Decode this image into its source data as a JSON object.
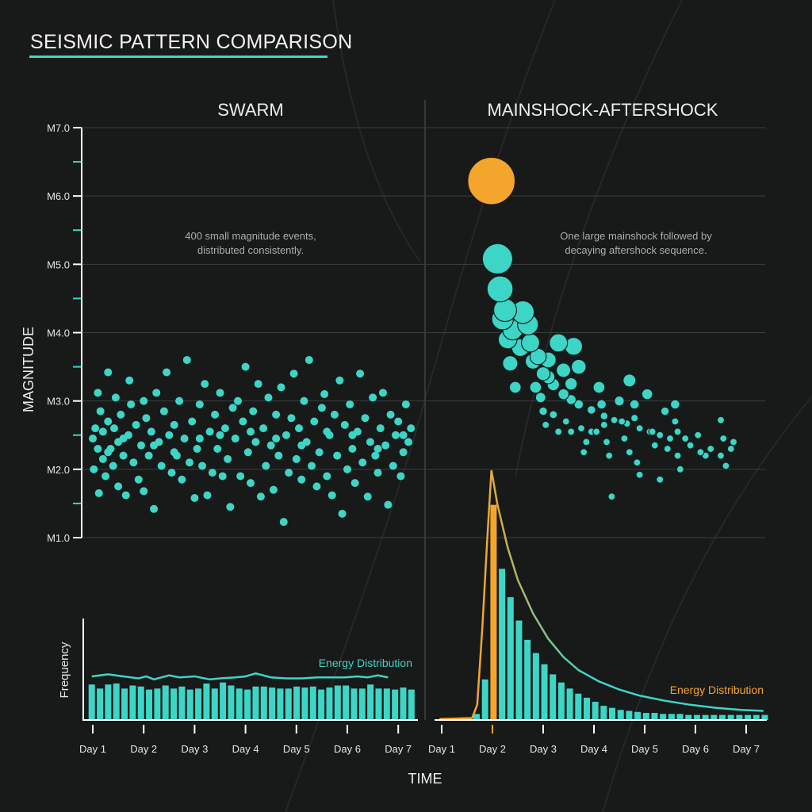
{
  "title": "SEISMIC PATTERN COMPARISON",
  "colors": {
    "background": "#181919",
    "teal": "#3dd6c6",
    "orange": "#f4a52c",
    "grid": "#3a3f3f",
    "axis": "#ffffff"
  },
  "chart_data": [
    {
      "type": "scatter",
      "title": "SWARM",
      "annotation": [
        "400 small magnitude events,",
        "distributed consistently."
      ],
      "ylabel": "MAGNITUDE",
      "xlabel": "TIME",
      "yticks": [
        "M7.0",
        "M6.0",
        "M5.0",
        "M4.0",
        "M3.0",
        "M2.0",
        "M1.0"
      ],
      "ylim": [
        1.0,
        7.0
      ],
      "xticks": [
        "Day 1",
        "Day 2",
        "Day 3",
        "Day 4",
        "Day 5",
        "Day 6",
        "Day 7"
      ],
      "grid": true,
      "points": [
        [
          1.0,
          2.45
        ],
        [
          1.02,
          2.0
        ],
        [
          1.05,
          2.6
        ],
        [
          1.1,
          2.3
        ],
        [
          1.1,
          3.12
        ],
        [
          1.12,
          1.65
        ],
        [
          1.15,
          2.85
        ],
        [
          1.2,
          2.15
        ],
        [
          1.2,
          2.55
        ],
        [
          1.25,
          1.9
        ],
        [
          1.3,
          3.42
        ],
        [
          1.3,
          2.7
        ],
        [
          1.35,
          2.3
        ],
        [
          1.4,
          2.05
        ],
        [
          1.42,
          2.6
        ],
        [
          1.45,
          3.05
        ],
        [
          1.5,
          1.75
        ],
        [
          1.5,
          2.4
        ],
        [
          1.55,
          2.8
        ],
        [
          1.6,
          2.2
        ],
        [
          1.65,
          1.62
        ],
        [
          1.7,
          2.5
        ],
        [
          1.72,
          3.3
        ],
        [
          1.75,
          2.95
        ],
        [
          1.8,
          2.1
        ],
        [
          1.85,
          2.65
        ],
        [
          1.9,
          1.85
        ],
        [
          1.95,
          2.35
        ],
        [
          2.0,
          3.0
        ],
        [
          2.0,
          1.68
        ],
        [
          2.05,
          2.75
        ],
        [
          2.1,
          2.2
        ],
        [
          2.15,
          2.55
        ],
        [
          2.2,
          1.42
        ],
        [
          2.25,
          3.12
        ],
        [
          2.3,
          2.4
        ],
        [
          2.35,
          2.05
        ],
        [
          2.4,
          2.85
        ],
        [
          2.45,
          3.42
        ],
        [
          2.5,
          2.5
        ],
        [
          2.55,
          1.95
        ],
        [
          2.6,
          2.65
        ],
        [
          2.65,
          2.2
        ],
        [
          2.7,
          3.0
        ],
        [
          2.75,
          1.85
        ],
        [
          2.8,
          2.45
        ],
        [
          2.85,
          3.6
        ],
        [
          2.9,
          2.1
        ],
        [
          2.95,
          2.7
        ],
        [
          3.0,
          1.58
        ],
        [
          3.05,
          2.3
        ],
        [
          3.1,
          2.95
        ],
        [
          3.15,
          2.05
        ],
        [
          3.2,
          3.25
        ],
        [
          3.25,
          1.62
        ],
        [
          3.3,
          2.55
        ],
        [
          3.35,
          1.95
        ],
        [
          3.4,
          2.8
        ],
        [
          3.45,
          2.3
        ],
        [
          3.5,
          3.12
        ],
        [
          3.55,
          1.9
        ],
        [
          3.6,
          2.6
        ],
        [
          3.65,
          2.15
        ],
        [
          3.7,
          1.45
        ],
        [
          3.75,
          2.9
        ],
        [
          3.8,
          2.45
        ],
        [
          3.85,
          3.0
        ],
        [
          3.9,
          1.9
        ],
        [
          3.95,
          2.7
        ],
        [
          4.0,
          3.5
        ],
        [
          4.05,
          2.25
        ],
        [
          4.1,
          1.8
        ],
        [
          4.15,
          2.85
        ],
        [
          4.2,
          2.4
        ],
        [
          4.25,
          3.25
        ],
        [
          4.3,
          1.6
        ],
        [
          4.35,
          2.6
        ],
        [
          4.4,
          2.05
        ],
        [
          4.45,
          3.05
        ],
        [
          4.5,
          2.35
        ],
        [
          4.55,
          1.7
        ],
        [
          4.6,
          2.8
        ],
        [
          4.65,
          2.2
        ],
        [
          4.7,
          3.2
        ],
        [
          4.75,
          1.23
        ],
        [
          4.8,
          2.5
        ],
        [
          4.85,
          1.95
        ],
        [
          4.9,
          2.75
        ],
        [
          4.95,
          3.4
        ],
        [
          5.0,
          2.15
        ],
        [
          5.05,
          2.6
        ],
        [
          5.1,
          1.85
        ],
        [
          5.15,
          3.0
        ],
        [
          5.2,
          2.4
        ],
        [
          5.25,
          3.6
        ],
        [
          5.3,
          2.05
        ],
        [
          5.35,
          2.7
        ],
        [
          5.4,
          1.75
        ],
        [
          5.45,
          2.25
        ],
        [
          5.5,
          2.9
        ],
        [
          5.55,
          3.1
        ],
        [
          5.6,
          1.9
        ],
        [
          5.65,
          2.5
        ],
        [
          5.7,
          1.62
        ],
        [
          5.75,
          2.8
        ],
        [
          5.8,
          2.2
        ],
        [
          5.85,
          3.3
        ],
        [
          5.9,
          1.35
        ],
        [
          5.95,
          2.65
        ],
        [
          6.0,
          2.0
        ],
        [
          6.05,
          2.95
        ],
        [
          6.1,
          2.3
        ],
        [
          6.15,
          1.8
        ],
        [
          6.2,
          2.55
        ],
        [
          6.25,
          3.4
        ],
        [
          6.3,
          2.1
        ],
        [
          6.35,
          2.75
        ],
        [
          6.4,
          1.6
        ],
        [
          6.45,
          2.4
        ],
        [
          6.5,
          3.05
        ],
        [
          6.55,
          2.2
        ],
        [
          6.6,
          1.95
        ],
        [
          6.65,
          2.6
        ],
        [
          6.7,
          3.12
        ],
        [
          6.75,
          2.35
        ],
        [
          6.8,
          1.48
        ],
        [
          6.85,
          2.8
        ],
        [
          6.9,
          2.05
        ],
        [
          6.95,
          2.5
        ],
        [
          7.0,
          2.7
        ],
        [
          7.05,
          1.9
        ],
        [
          7.1,
          2.25
        ],
        [
          7.15,
          2.95
        ],
        [
          7.2,
          2.4
        ],
        [
          7.25,
          2.6
        ],
        [
          1.3,
          2.25
        ],
        [
          1.6,
          2.45
        ],
        [
          2.2,
          2.35
        ],
        [
          2.6,
          2.25
        ],
        [
          3.1,
          2.45
        ],
        [
          3.5,
          2.5
        ],
        [
          4.1,
          2.55
        ],
        [
          4.6,
          2.45
        ],
        [
          5.1,
          2.35
        ],
        [
          5.6,
          2.55
        ],
        [
          6.1,
          2.5
        ],
        [
          6.6,
          2.3
        ],
        [
          7.1,
          2.5
        ]
      ]
    },
    {
      "type": "scatter",
      "title": "MAINSHOCK-AFTERSHOCK",
      "annotation": [
        "One large mainshock followed by",
        "decaying aftershock sequence."
      ],
      "ylim": [
        1.0,
        7.0
      ],
      "xticks": [
        "Day 1",
        "Day 2",
        "Day 3",
        "Day 4",
        "Day 5",
        "Day 6",
        "Day 7"
      ],
      "mainshock": [
        1.98,
        6.22
      ],
      "points": [
        [
          2.1,
          5.08
        ],
        [
          2.15,
          4.64
        ],
        [
          2.25,
          4.33
        ],
        [
          2.4,
          4.04
        ],
        [
          2.55,
          3.78
        ],
        [
          2.8,
          3.58
        ],
        [
          3.0,
          3.4
        ],
        [
          3.2,
          3.24
        ],
        [
          3.4,
          3.1
        ],
        [
          3.55,
          3.02
        ],
        [
          3.7,
          2.95
        ],
        [
          3.95,
          2.87
        ],
        [
          4.2,
          2.78
        ],
        [
          4.4,
          2.72
        ],
        [
          4.65,
          2.67
        ],
        [
          4.9,
          2.6
        ],
        [
          5.1,
          2.55
        ],
        [
          5.3,
          2.5
        ],
        [
          5.5,
          2.45
        ],
        [
          2.2,
          4.2
        ],
        [
          2.3,
          3.9
        ],
        [
          2.35,
          3.55
        ],
        [
          2.45,
          3.2
        ],
        [
          2.6,
          4.3
        ],
        [
          2.7,
          4.12
        ],
        [
          2.75,
          3.85
        ],
        [
          2.85,
          3.2
        ],
        [
          2.9,
          3.65
        ],
        [
          2.95,
          3.05
        ],
        [
          3.0,
          2.85
        ],
        [
          3.05,
          2.65
        ],
        [
          3.1,
          3.6
        ],
        [
          3.1,
          3.35
        ],
        [
          3.2,
          2.8
        ],
        [
          3.3,
          3.85
        ],
        [
          3.3,
          2.55
        ],
        [
          3.4,
          3.45
        ],
        [
          3.45,
          2.7
        ],
        [
          3.55,
          3.25
        ],
        [
          3.55,
          2.55
        ],
        [
          3.6,
          3.8
        ],
        [
          3.7,
          3.5
        ],
        [
          3.75,
          2.6
        ],
        [
          3.8,
          2.25
        ],
        [
          3.85,
          2.4
        ],
        [
          3.95,
          2.55
        ],
        [
          4.05,
          2.55
        ],
        [
          4.1,
          3.2
        ],
        [
          4.15,
          2.95
        ],
        [
          4.2,
          2.65
        ],
        [
          4.25,
          2.4
        ],
        [
          4.3,
          2.2
        ],
        [
          4.35,
          1.6
        ],
        [
          4.5,
          3.0
        ],
        [
          4.55,
          2.7
        ],
        [
          4.6,
          2.45
        ],
        [
          4.7,
          3.3
        ],
        [
          4.7,
          2.25
        ],
        [
          4.8,
          2.95
        ],
        [
          4.8,
          2.75
        ],
        [
          4.85,
          2.1
        ],
        [
          4.9,
          1.92
        ],
        [
          5.05,
          3.1
        ],
        [
          5.15,
          2.55
        ],
        [
          5.2,
          2.35
        ],
        [
          5.3,
          1.85
        ],
        [
          5.4,
          2.85
        ],
        [
          5.45,
          2.3
        ],
        [
          5.6,
          2.95
        ],
        [
          5.6,
          2.7
        ],
        [
          5.65,
          2.55
        ],
        [
          5.65,
          2.2
        ],
        [
          5.7,
          2.0
        ],
        [
          5.8,
          2.45
        ],
        [
          5.9,
          2.35
        ],
        [
          6.05,
          2.5
        ],
        [
          6.1,
          2.25
        ],
        [
          6.2,
          2.2
        ],
        [
          6.3,
          2.3
        ],
        [
          6.5,
          2.72
        ],
        [
          6.5,
          2.2
        ],
        [
          6.55,
          2.45
        ],
        [
          6.6,
          2.05
        ],
        [
          6.7,
          2.3
        ],
        [
          6.75,
          2.4
        ]
      ]
    },
    {
      "type": "bar",
      "ylabel": "Frequency",
      "legend": "Energy Distribution",
      "bin_width_days": 0.161,
      "first_bin_day": 0.98,
      "values": [
        35,
        31,
        35,
        36,
        31,
        34,
        33,
        30,
        31,
        34,
        31,
        33,
        30,
        31,
        36,
        31,
        37,
        34,
        31,
        30,
        33,
        33,
        32,
        31,
        31,
        33,
        32,
        33,
        30,
        32,
        34,
        34,
        31,
        31,
        35,
        31,
        31,
        30,
        32,
        30
      ],
      "energy_line": [
        [
          0.98,
          43
        ],
        [
          1.3,
          45
        ],
        [
          1.6,
          43
        ],
        [
          1.9,
          41
        ],
        [
          2.05,
          43
        ],
        [
          2.2,
          40
        ],
        [
          2.5,
          44
        ],
        [
          2.7,
          42
        ],
        [
          3.0,
          43
        ],
        [
          3.3,
          40
        ],
        [
          3.5,
          41
        ],
        [
          3.8,
          42
        ],
        [
          4.0,
          43
        ],
        [
          4.2,
          46
        ],
        [
          4.5,
          42
        ],
        [
          4.8,
          41
        ],
        [
          5.1,
          41
        ],
        [
          5.4,
          42
        ],
        [
          5.7,
          42
        ],
        [
          5.95,
          42
        ],
        [
          6.2,
          43
        ],
        [
          6.4,
          42
        ],
        [
          6.6,
          44
        ],
        [
          6.8,
          42
        ]
      ]
    },
    {
      "type": "bar",
      "legend": "Energy Distribution",
      "bin_width_days": 0.167,
      "first_bin_day": 1.02,
      "highlight_bin": 6,
      "values": [
        2,
        2,
        2,
        2,
        6,
        40,
        212,
        149,
        121,
        98,
        79,
        66,
        55,
        45,
        37,
        31,
        26,
        22,
        18,
        14,
        12,
        10,
        9,
        8,
        7,
        7,
        6,
        6,
        6,
        5,
        5,
        5,
        5,
        5,
        5,
        5,
        5,
        5,
        5
      ],
      "energy_line": [
        [
          0.97,
          1
        ],
        [
          1.6,
          2
        ],
        [
          1.7,
          15
        ],
        [
          1.8,
          90
        ],
        [
          1.9,
          180
        ],
        [
          1.98,
          246
        ],
        [
          2.1,
          212
        ],
        [
          2.3,
          170
        ],
        [
          2.5,
          138
        ],
        [
          2.8,
          105
        ],
        [
          3.1,
          80
        ],
        [
          3.4,
          62
        ],
        [
          3.7,
          49
        ],
        [
          4.1,
          38
        ],
        [
          4.5,
          30
        ],
        [
          4.9,
          24
        ],
        [
          5.4,
          19
        ],
        [
          5.9,
          15
        ],
        [
          6.4,
          12
        ],
        [
          6.9,
          10
        ],
        [
          7.34,
          9
        ]
      ]
    }
  ]
}
